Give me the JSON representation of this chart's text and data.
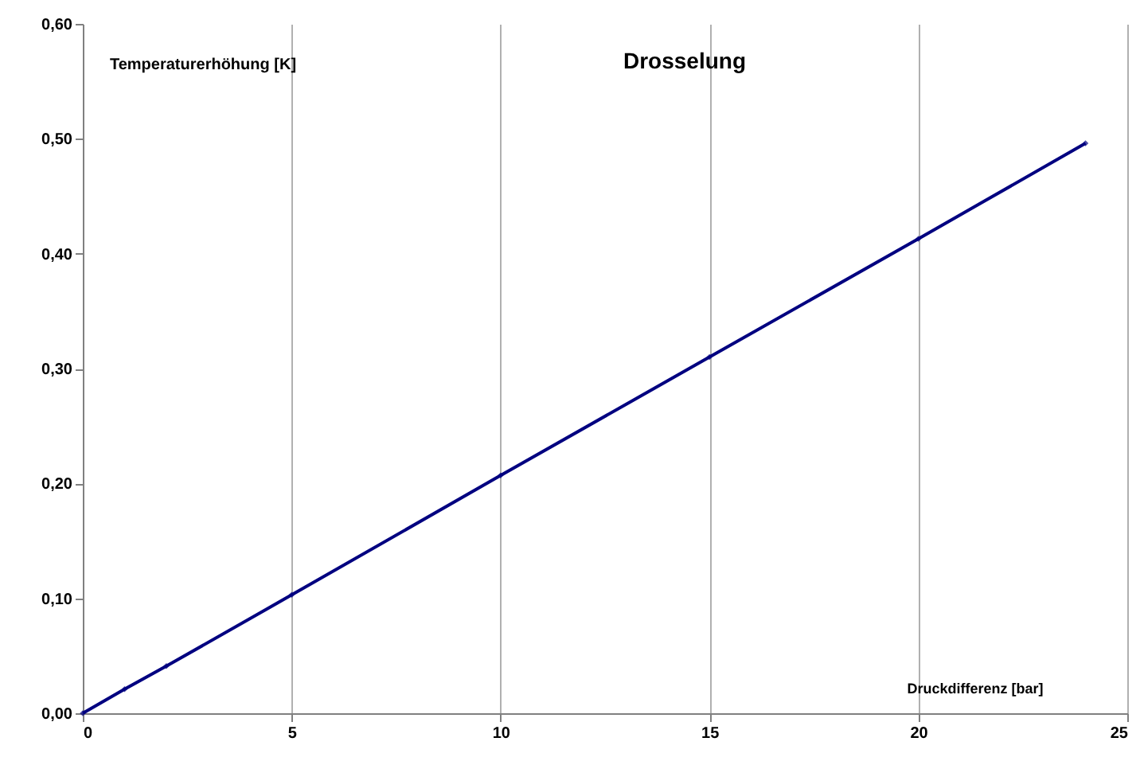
{
  "chart_data": {
    "type": "line",
    "title": "Drosselung",
    "xlabel": "Druckdifferenz [bar]",
    "ylabel": "Temperaturerhöhung [K]",
    "x": [
      0,
      1,
      2,
      5,
      10,
      15,
      20,
      24
    ],
    "series": [
      {
        "color": "#000080",
        "values": [
          0,
          0.021,
          0.041,
          0.103,
          0.207,
          0.31,
          0.413,
          0.496
        ]
      }
    ],
    "xlim": [
      0,
      25
    ],
    "xticks": [
      0,
      5,
      10,
      15,
      20,
      25
    ],
    "ylim": [
      0,
      0.6
    ],
    "yticks": [
      {
        "value": 0,
        "label": "0,00"
      },
      {
        "value": 0.1,
        "label": "0,10"
      },
      {
        "value": 0.2,
        "label": "0,20"
      },
      {
        "value": 0.3,
        "label": "0,30"
      },
      {
        "value": 0.4,
        "label": "0,40"
      },
      {
        "value": 0.5,
        "label": "0,50"
      },
      {
        "value": 0.6,
        "label": "0,60"
      }
    ],
    "grid": "x",
    "marker": "diamond",
    "line_style": "solid",
    "legend": false
  }
}
